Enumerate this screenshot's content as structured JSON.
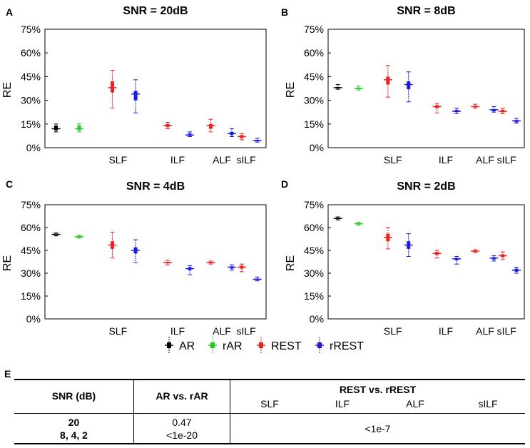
{
  "chart_data": [
    {
      "panel": "A",
      "type": "boxplot",
      "title": "SNR = 20dB",
      "ylabel": "RE",
      "ylim": [
        0,
        75
      ],
      "ytick_labels": [
        "0%",
        "15%",
        "30%",
        "45%",
        "60%",
        "75%"
      ],
      "xtick_labels": [
        "SLF",
        "ILF",
        "ALF",
        "sILF"
      ],
      "boxes": [
        {
          "series": "AR",
          "median": 12,
          "q1": 11,
          "q3": 14,
          "lo": 10,
          "hi": 15
        },
        {
          "series": "rAR",
          "median": 12,
          "q1": 11,
          "q3": 14,
          "lo": 10,
          "hi": 15
        },
        {
          "series": "REST",
          "median": 38,
          "q1": 35,
          "q3": 42,
          "lo": 25,
          "hi": 49
        },
        {
          "series": "rREST",
          "median": 34,
          "q1": 30,
          "q3": 36,
          "lo": 22,
          "hi": 43
        },
        {
          "series": "REST",
          "median": 14,
          "q1": 13,
          "q3": 15,
          "lo": 12,
          "hi": 16
        },
        {
          "series": "rREST",
          "median": 8,
          "q1": 7.5,
          "q3": 9,
          "lo": 7,
          "hi": 10
        },
        {
          "series": "REST",
          "median": 14,
          "q1": 12,
          "q3": 15,
          "lo": 10,
          "hi": 18
        },
        {
          "series": "rREST",
          "median": 9,
          "q1": 8,
          "q3": 10,
          "lo": 7,
          "hi": 12
        },
        {
          "series": "REST",
          "median": 7,
          "q1": 6,
          "q3": 8,
          "lo": 5,
          "hi": 9
        },
        {
          "series": "rREST",
          "median": 4.5,
          "q1": 4,
          "q3": 5,
          "lo": 3.5,
          "hi": 6
        }
      ]
    },
    {
      "panel": "B",
      "type": "boxplot",
      "title": "SNR = 8dB",
      "ylabel": "RE",
      "ylim": [
        0,
        75
      ],
      "ytick_labels": [
        "0%",
        "15%",
        "30%",
        "45%",
        "60%",
        "75%"
      ],
      "xtick_labels": [
        "SLF",
        "ILF",
        "ALF",
        "sILF"
      ],
      "boxes": [
        {
          "series": "AR",
          "median": 38,
          "q1": 37.5,
          "q3": 38.5,
          "lo": 37,
          "hi": 40
        },
        {
          "series": "rAR",
          "median": 37.5,
          "q1": 37,
          "q3": 38,
          "lo": 36.5,
          "hi": 39
        },
        {
          "series": "REST",
          "median": 43,
          "q1": 40,
          "q3": 45,
          "lo": 32,
          "hi": 52
        },
        {
          "series": "rREST",
          "median": 40,
          "q1": 37,
          "q3": 42,
          "lo": 29,
          "hi": 48
        },
        {
          "series": "REST",
          "median": 26,
          "q1": 25,
          "q3": 27,
          "lo": 22,
          "hi": 28
        },
        {
          "series": "rREST",
          "median": 23,
          "q1": 22.5,
          "q3": 24,
          "lo": 21.5,
          "hi": 25
        },
        {
          "series": "REST",
          "median": 26,
          "q1": 25.5,
          "q3": 26.5,
          "lo": 25,
          "hi": 27.5
        },
        {
          "series": "rREST",
          "median": 24,
          "q1": 23,
          "q3": 24.5,
          "lo": 22.5,
          "hi": 26
        },
        {
          "series": "REST",
          "median": 23,
          "q1": 22.5,
          "q3": 24,
          "lo": 21.5,
          "hi": 25
        },
        {
          "series": "rREST",
          "median": 17,
          "q1": 16,
          "q3": 17.5,
          "lo": 15.5,
          "hi": 18.5
        }
      ]
    },
    {
      "panel": "C",
      "type": "boxplot",
      "title": "SNR = 4dB",
      "ylabel": "RE",
      "ylim": [
        0,
        75
      ],
      "ytick_labels": [
        "0%",
        "15%",
        "30%",
        "45%",
        "60%",
        "75%"
      ],
      "xtick_labels": [
        "SLF",
        "ILF",
        "ALF",
        "sILF"
      ],
      "boxes": [
        {
          "series": "AR",
          "median": 55.5,
          "q1": 55,
          "q3": 56,
          "lo": 54.5,
          "hi": 56.5
        },
        {
          "series": "rAR",
          "median": 54,
          "q1": 53.5,
          "q3": 54.5,
          "lo": 53,
          "hi": 55
        },
        {
          "series": "REST",
          "median": 48.5,
          "q1": 46,
          "q3": 51,
          "lo": 40,
          "hi": 57
        },
        {
          "series": "rREST",
          "median": 45,
          "q1": 43,
          "q3": 47,
          "lo": 37,
          "hi": 52
        },
        {
          "series": "REST",
          "median": 37,
          "q1": 36.5,
          "q3": 37.5,
          "lo": 35.5,
          "hi": 38.5
        },
        {
          "series": "rREST",
          "median": 33,
          "q1": 32,
          "q3": 34,
          "lo": 29,
          "hi": 35
        },
        {
          "series": "REST",
          "median": 37,
          "q1": 36.5,
          "q3": 37.5,
          "lo": 36,
          "hi": 38
        },
        {
          "series": "rREST",
          "median": 34,
          "q1": 33,
          "q3": 34.5,
          "lo": 32,
          "hi": 35.5
        },
        {
          "series": "REST",
          "median": 34,
          "q1": 33,
          "q3": 35,
          "lo": 31,
          "hi": 36
        },
        {
          "series": "rREST",
          "median": 26,
          "q1": 25.5,
          "q3": 26.5,
          "lo": 25,
          "hi": 27.5
        }
      ]
    },
    {
      "panel": "D",
      "type": "boxplot",
      "title": "SNR = 2dB",
      "ylabel": "RE",
      "ylim": [
        0,
        75
      ],
      "ytick_labels": [
        "0%",
        "15%",
        "30%",
        "45%",
        "60%",
        "75%"
      ],
      "xtick_labels": [
        "SLF",
        "ILF",
        "ALF",
        "sILF"
      ],
      "boxes": [
        {
          "series": "AR",
          "median": 66,
          "q1": 65.5,
          "q3": 66.5,
          "lo": 65,
          "hi": 67
        },
        {
          "series": "rAR",
          "median": 62.5,
          "q1": 62,
          "q3": 63,
          "lo": 61.5,
          "hi": 63.5
        },
        {
          "series": "REST",
          "median": 53.5,
          "q1": 51,
          "q3": 56,
          "lo": 46,
          "hi": 60
        },
        {
          "series": "rREST",
          "median": 48.5,
          "q1": 46,
          "q3": 51,
          "lo": 41,
          "hi": 56
        },
        {
          "series": "REST",
          "median": 43,
          "q1": 42,
          "q3": 44,
          "lo": 40,
          "hi": 45
        },
        {
          "series": "rREST",
          "median": 39.5,
          "q1": 38.5,
          "q3": 40,
          "lo": 36,
          "hi": 41
        },
        {
          "series": "REST",
          "median": 44.5,
          "q1": 44,
          "q3": 45,
          "lo": 43.5,
          "hi": 45.5
        },
        {
          "series": "rREST",
          "median": 40,
          "q1": 39,
          "q3": 40.5,
          "lo": 38,
          "hi": 41.5
        },
        {
          "series": "REST",
          "median": 41.5,
          "q1": 40.5,
          "q3": 42.5,
          "lo": 39,
          "hi": 44
        },
        {
          "series": "rREST",
          "median": 32,
          "q1": 31,
          "q3": 33,
          "lo": 30,
          "hi": 34
        }
      ]
    }
  ],
  "legend": [
    {
      "name": "AR",
      "color": "#000000"
    },
    {
      "name": "rAR",
      "color": "#22cc22"
    },
    {
      "name": "REST",
      "color": "#ee2222"
    },
    {
      "name": "rREST",
      "color": "#1a1ae0"
    }
  ],
  "table": {
    "panel": "E",
    "col1_header": "SNR (dB)",
    "col2_header": "AR vs. rAR",
    "col3_header": "REST vs. rREST",
    "col3_subheaders": [
      "SLF",
      "ILF",
      "ALF",
      "sILF"
    ],
    "row1_snr": "20",
    "row2_snr": "8, 4, 2",
    "row1_ar": "0.47",
    "row2_ar": "<1e-20",
    "rest_value": "<1e-7"
  }
}
